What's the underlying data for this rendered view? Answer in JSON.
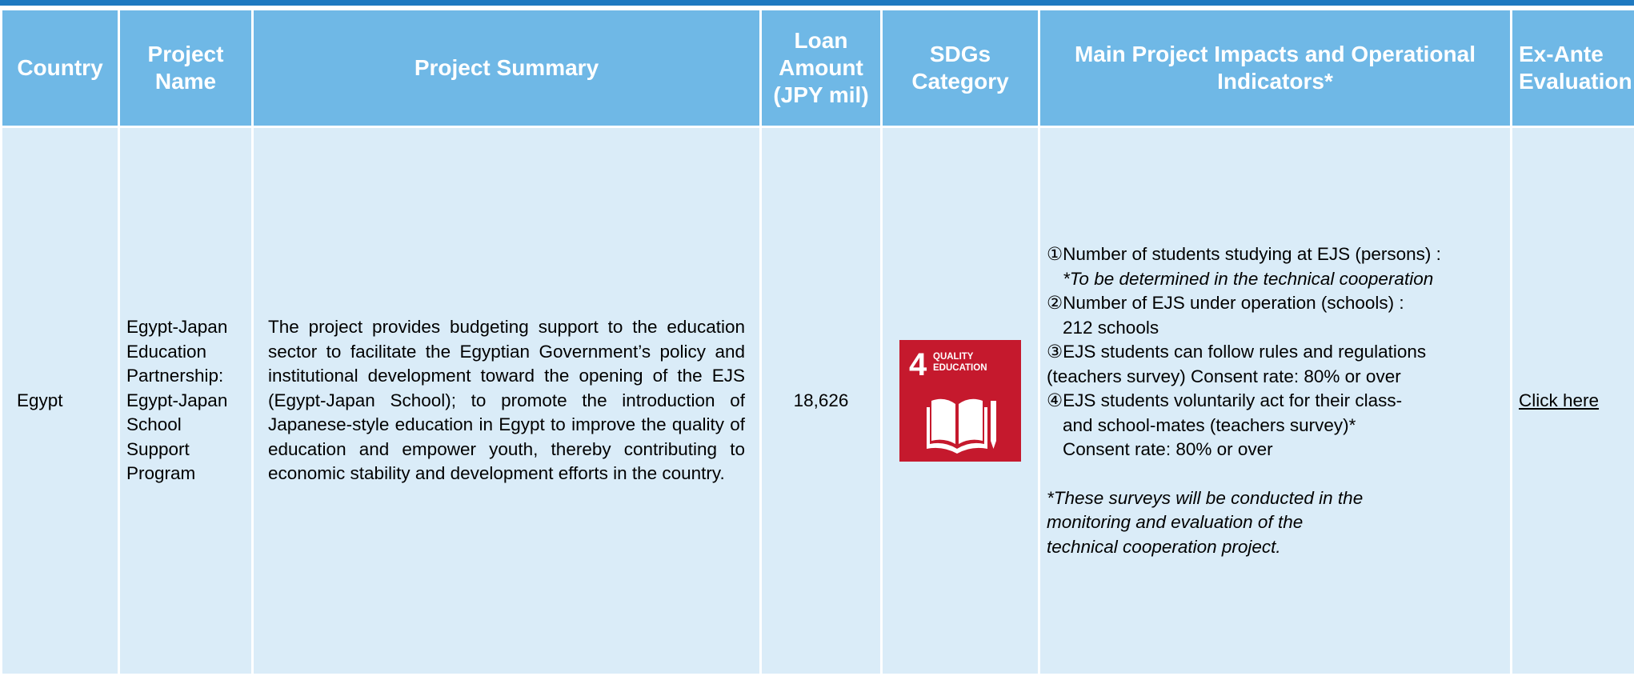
{
  "table": {
    "headers": [
      "Country",
      "Project Name",
      "Project Summary",
      "Loan Amount (JPY mil)",
      "SDGs Category",
      "Main Project Impacts and Operational Indicators*",
      "Ex-Ante Evaluation"
    ],
    "rows": [
      {
        "country": "Egypt",
        "project_name": "Egypt-Japan Education Partnership: Egypt-Japan School Support Program",
        "summary": "The project provides budgeting support to the education sector to facilitate the Egyptian Government’s policy and institutional development toward the opening of the EJS (Egypt-Japan School); to promote the introduction of Japanese-style education in Egypt to improve the quality of education and empower youth, thereby contributing to economic stability and development efforts in the country.",
        "loan_amount": "18,626",
        "sdg": {
          "number": "4",
          "line1": "QUALITY",
          "line2": "EDUCATION"
        },
        "indicators": [
          "①Number of students studying at EJS (persons) :",
          "*To be determined in the technical cooperation",
          "②Number of EJS under operation (schools) :",
          "212 schools",
          "③EJS students can follow rules and regulations",
          "(teachers survey) Consent rate: 80% or over",
          "④EJS students voluntarily act for their class-",
          "and school-mates (teachers survey)*",
          "Consent rate: 80% or over"
        ],
        "notes": [
          "*These surveys will be conducted in the",
          "monitoring and evaluation of the",
          "technical cooperation project."
        ],
        "link": "Click here"
      }
    ]
  }
}
